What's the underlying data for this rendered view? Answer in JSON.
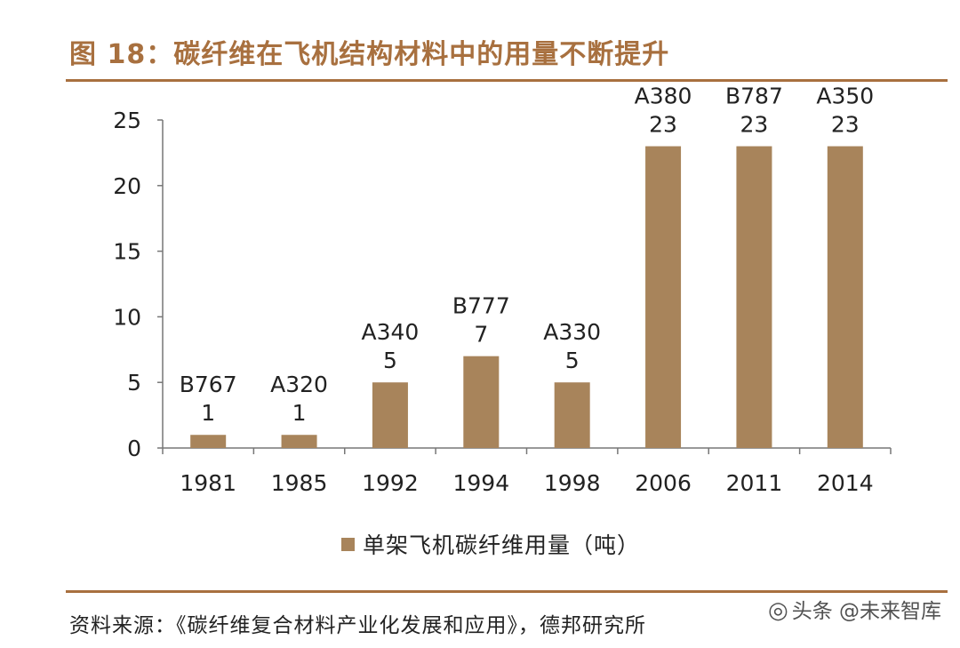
{
  "header": {
    "title": "图 18：碳纤维在飞机结构材料中的用量不断提升"
  },
  "footer": {
    "source": "资料来源：《碳纤维复合材料产业化发展和应用》，德邦研究所"
  },
  "watermark": {
    "text": "头条 @未来智库",
    "icon": "wechat-icon"
  },
  "colors": {
    "accent": "#A8703F",
    "bar": "#A8845B"
  },
  "chart_data": {
    "type": "bar",
    "categories": [
      "1981",
      "1985",
      "1992",
      "1994",
      "1998",
      "2006",
      "2011",
      "2014"
    ],
    "series": [
      {
        "name": "单架飞机碳纤维用量（吨）",
        "values": [
          1,
          1,
          5,
          7,
          5,
          23,
          23,
          23
        ]
      }
    ],
    "bar_labels": [
      "B767",
      "A320",
      "A340",
      "B777",
      "A330",
      "A380",
      "B787",
      "A350"
    ],
    "ylim": [
      0,
      25
    ],
    "yticks": [
      0,
      5,
      10,
      15,
      20,
      25
    ],
    "xlabel": "",
    "ylabel": "",
    "grid": false,
    "legend": "bottom-center"
  }
}
